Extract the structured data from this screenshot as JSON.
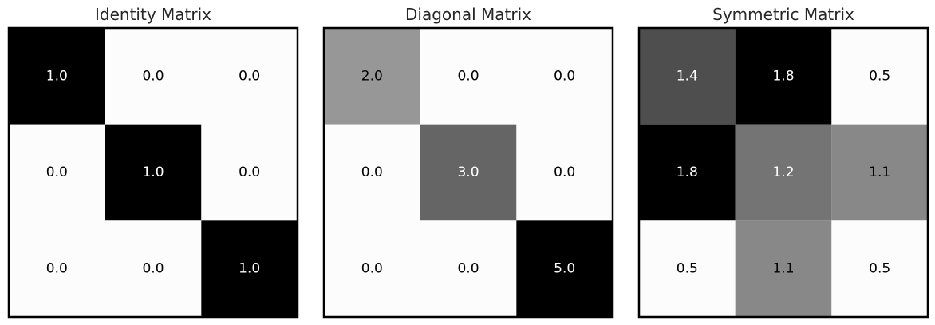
{
  "chart_data": [
    {
      "type": "heatmap",
      "title": "Identity Matrix",
      "colormap": "Greys",
      "value_format": "0.0",
      "matrix": [
        [
          1.0,
          0.0,
          0.0
        ],
        [
          0.0,
          1.0,
          0.0
        ],
        [
          0.0,
          0.0,
          1.0
        ]
      ]
    },
    {
      "type": "heatmap",
      "title": "Diagonal Matrix",
      "colormap": "Greys",
      "value_format": "0.0",
      "matrix": [
        [
          2.0,
          0.0,
          0.0
        ],
        [
          0.0,
          3.0,
          0.0
        ],
        [
          0.0,
          0.0,
          5.0
        ]
      ]
    },
    {
      "type": "heatmap",
      "title": "Symmetric Matrix",
      "colormap": "Greys",
      "value_format": "0.0",
      "matrix": [
        [
          1.4,
          1.8,
          0.5
        ],
        [
          1.8,
          1.2,
          1.1
        ],
        [
          0.5,
          1.1,
          0.5
        ]
      ]
    }
  ]
}
